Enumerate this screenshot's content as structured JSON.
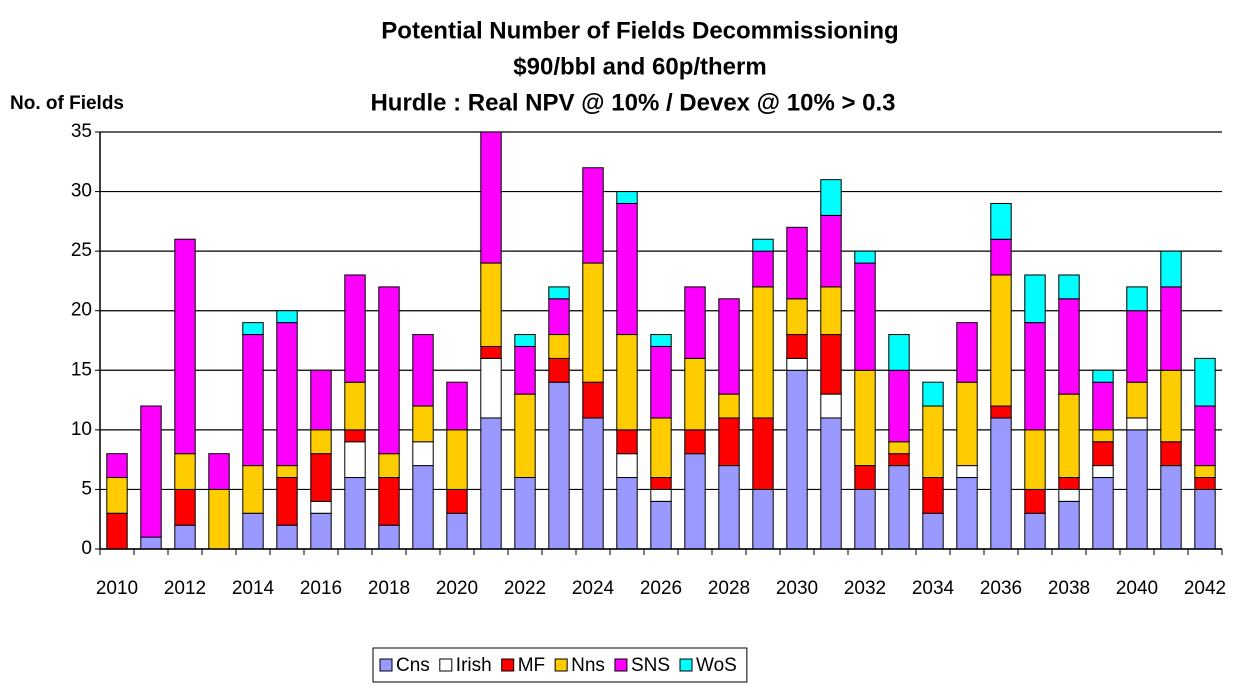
{
  "chart_data": {
    "type": "stacked_bar",
    "title": [
      "Potential Number of Fields Decommissioning",
      "$90/bbl and 60p/therm",
      "Hurdle : Real NPV @ 10% / Devex @ 10% > 0.3"
    ],
    "y_label": "No. of Fields",
    "categories": [
      "2010",
      null,
      "2012",
      null,
      "2014",
      null,
      "2016",
      null,
      "2018",
      null,
      "2020",
      null,
      "2022",
      null,
      "2024",
      null,
      "2026",
      null,
      "2028",
      null,
      "2030",
      null,
      "2032",
      null,
      "2034",
      null,
      "2036",
      null,
      "2038",
      null,
      "2040",
      null,
      "2042"
    ],
    "series": [
      {
        "name": "Cns",
        "color": "#9999ff",
        "values": [
          0,
          1,
          2,
          0,
          3,
          2,
          3,
          6,
          2,
          7,
          3,
          11,
          6,
          14,
          11,
          6,
          4,
          8,
          7,
          5,
          15,
          11,
          5,
          7,
          3,
          6,
          11,
          3,
          4,
          6,
          10,
          7,
          5
        ]
      },
      {
        "name": "Irish",
        "color": "#ffffff",
        "values": [
          0,
          0,
          0,
          0,
          0,
          0,
          1,
          3,
          0,
          2,
          0,
          5,
          0,
          0,
          0,
          2,
          1,
          0,
          0,
          0,
          1,
          2,
          0,
          0,
          0,
          1,
          0,
          0,
          1,
          1,
          1,
          0,
          0
        ]
      },
      {
        "name": "MF",
        "color": "#ff0000",
        "values": [
          3,
          0,
          3,
          0,
          0,
          4,
          4,
          1,
          4,
          0,
          2,
          1,
          0,
          2,
          3,
          2,
          1,
          2,
          4,
          6,
          2,
          5,
          2,
          1,
          3,
          0,
          1,
          2,
          1,
          2,
          0,
          2,
          1
        ]
      },
      {
        "name": "Nns",
        "color": "#ffcc00",
        "values": [
          3,
          0,
          3,
          5,
          4,
          1,
          2,
          4,
          2,
          3,
          5,
          7,
          7,
          2,
          10,
          8,
          5,
          6,
          2,
          11,
          3,
          4,
          8,
          1,
          6,
          7,
          11,
          5,
          7,
          1,
          3,
          6,
          1
        ]
      },
      {
        "name": "SNS",
        "color": "#ff00ff",
        "values": [
          2,
          11,
          18,
          3,
          11,
          12,
          5,
          9,
          14,
          6,
          4,
          11,
          4,
          3,
          8,
          11,
          6,
          6,
          8,
          3,
          6,
          6,
          9,
          6,
          0,
          5,
          3,
          9,
          8,
          4,
          6,
          7,
          5
        ]
      },
      {
        "name": "WoS",
        "color": "#00ffff",
        "values": [
          0,
          0,
          0,
          0,
          1,
          1,
          0,
          0,
          0,
          0,
          0,
          0,
          1,
          1,
          0,
          1,
          1,
          0,
          0,
          1,
          0,
          3,
          1,
          3,
          2,
          0,
          3,
          4,
          2,
          1,
          2,
          3,
          4
        ]
      }
    ],
    "ylim": [
      0,
      35
    ],
    "yticks": [
      0,
      5,
      10,
      15,
      20,
      25,
      30,
      35
    ],
    "grid": true,
    "legend": "bottom"
  }
}
